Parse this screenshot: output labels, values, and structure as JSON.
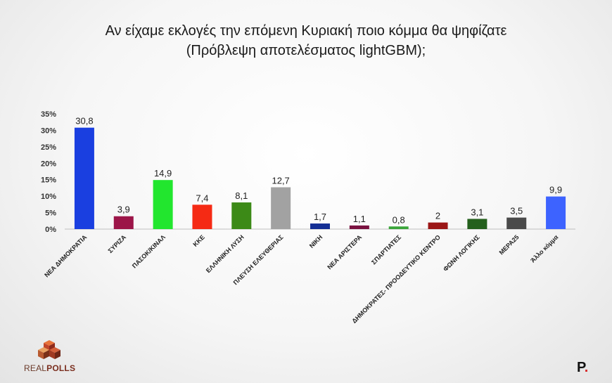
{
  "title_line1": "Αν είχαμε εκλογές την επόμενη Κυριακή ποιο κόμμα θα ψηφίζατε",
  "title_line2": "(Πρόβλεψη αποτελέσματος lightGBM);",
  "logo": {
    "part1": "REAL",
    "part2": "POLLS"
  },
  "corner_mark": {
    "letter": "P",
    "dot": "."
  },
  "chart_data": {
    "type": "bar",
    "title": "Αν είχαμε εκλογές την επόμενη Κυριακή ποιο κόμμα θα ψηφίζατε (Πρόβλεψη αποτελέσματος lightGBM);",
    "categories": [
      "ΝΕΑ ΔΗΜΟΚΡΑΤΙΑ",
      "ΣΥΡΙΖΑ",
      "ΠΑΣΟΚ/ΚΙΝΑΛ",
      "ΚΚΕ",
      "ΕΛΛΗΝΙΚΗ ΛΥΣΗ",
      "ΠΛΕΥΣΗ ΕΛΕΥΘΕΡΙΑΣ",
      "ΝΙΚΗ",
      "ΝΕΑ ΑΡΙΣΤΕΡΑ",
      "ΣΠΑΡΤΙΑΤΕΣ",
      "ΔΗΜΟΚΡΑΤΕΣ- ΠΡΟΟΔΕΥΤΙΚΟ ΚΕΝΤΡΟ",
      "ΦΩΝΗ ΛΟΓΙΚΗΣ",
      "ΜΕΡΑ25",
      "Άλλο κόμμα"
    ],
    "values": [
      30.8,
      3.9,
      14.9,
      7.4,
      8.1,
      12.7,
      1.7,
      1.1,
      0.8,
      2,
      3.1,
      3.5,
      9.9
    ],
    "value_labels": [
      "30,8",
      "3,9",
      "14,9",
      "7,4",
      "8,1",
      "12,7",
      "1,7",
      "1,1",
      "0,8",
      "2",
      "3,1",
      "3,5",
      "9,9"
    ],
    "colors": [
      "#1a3fe0",
      "#9c1548",
      "#22e62e",
      "#f52a14",
      "#3c8a17",
      "#a2a2a2",
      "#142f95",
      "#7a1140",
      "#3aa53a",
      "#9b1616",
      "#24601d",
      "#4a4a4a",
      "#3d63ff"
    ],
    "yticks": [
      "0%",
      "5%",
      "10%",
      "15%",
      "20%",
      "25%",
      "30%",
      "35%"
    ],
    "ylim": [
      0,
      35
    ],
    "xlabel": "",
    "ylabel": "",
    "grid": false,
    "legend": "none"
  }
}
